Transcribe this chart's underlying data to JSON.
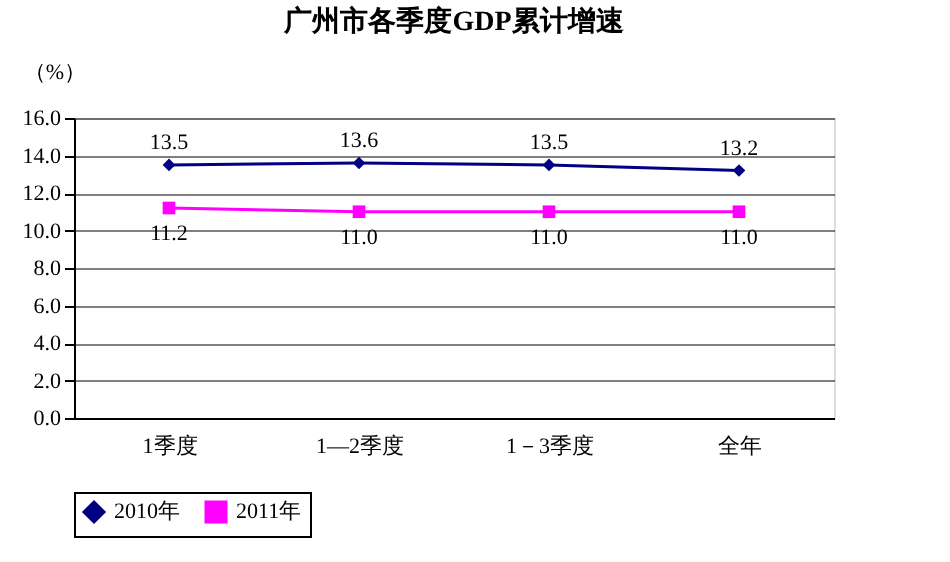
{
  "chart_data": {
    "type": "line",
    "title": "广州市各季度GDP累计增速",
    "ylabel": "（%）",
    "categories": [
      "1季度",
      "1—2季度",
      "1－3季度",
      "全年"
    ],
    "series": [
      {
        "name": "2010年",
        "color": "#000080",
        "marker": "diamond",
        "values": [
          13.5,
          13.6,
          13.5,
          13.2
        ],
        "value_labels": [
          "13.5",
          "13.6",
          "13.5",
          "13.2"
        ]
      },
      {
        "name": "2011年",
        "color": "#ff00ff",
        "marker": "square",
        "values": [
          11.2,
          11.0,
          11.0,
          11.0
        ],
        "value_labels": [
          "11.2",
          "11.0",
          "11.0",
          "11.0"
        ]
      }
    ],
    "ylim": [
      0,
      16
    ],
    "yticks": [
      {
        "value": 0,
        "label": "0.0"
      },
      {
        "value": 2,
        "label": "2.0"
      },
      {
        "value": 4,
        "label": "4.0"
      },
      {
        "value": 6,
        "label": "6.0"
      },
      {
        "value": 8,
        "label": "8.0"
      },
      {
        "value": 10,
        "label": "10.0"
      },
      {
        "value": 12,
        "label": "12.0"
      },
      {
        "value": 14,
        "label": "14.0"
      },
      {
        "value": 16,
        "label": "16.0"
      }
    ],
    "grid": "y",
    "legend": "bottom",
    "line_style": "solid"
  }
}
